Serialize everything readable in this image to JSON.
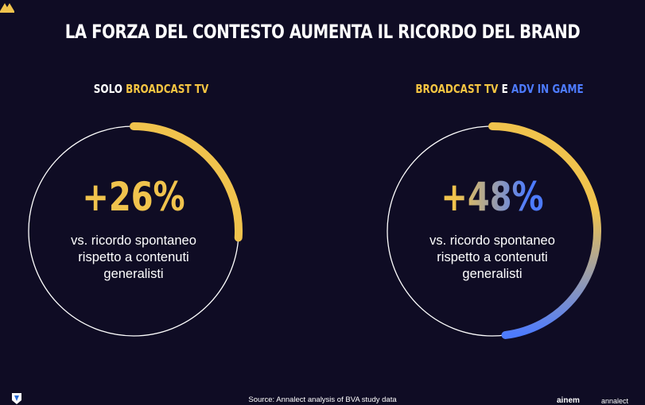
{
  "title": "LA FORZA DEL CONTESTO AUMENTA IL RICORDO DEL BRAND",
  "panels": {
    "left": {
      "label_part1": "SOLO ",
      "label_part2": "BROADCAST TV",
      "value": "+26%",
      "desc_lines": [
        "vs. ricordo spontaneo",
        "rispetto a contenuti",
        "generalisti"
      ]
    },
    "right": {
      "label_part1": "BROADCAST TV",
      "label_part2": " E ",
      "label_part3": "ADV IN GAME",
      "value": "+48%",
      "desc_lines": [
        "vs. ricordo spontaneo",
        "rispetto a contenuti",
        "generalisti"
      ]
    }
  },
  "source": "Source: Annalect analysis of BVA study data",
  "logos": {
    "partner": "ainem",
    "annalect": "annalect"
  },
  "colors": {
    "background": "#0f0c24",
    "yellow": "#f0c34d",
    "blue": "#4d7bff"
  },
  "chart_data": [
    {
      "type": "pie",
      "label": "SOLO BROADCAST TV",
      "value_percent": 26,
      "value_label": "+26%",
      "color": "#f0c34d"
    },
    {
      "type": "pie",
      "label": "BROADCAST TV E ADV IN GAME",
      "value_percent": 48,
      "value_label": "+48%",
      "color_start": "#f0c34d",
      "color_end": "#4d7bff"
    }
  ]
}
